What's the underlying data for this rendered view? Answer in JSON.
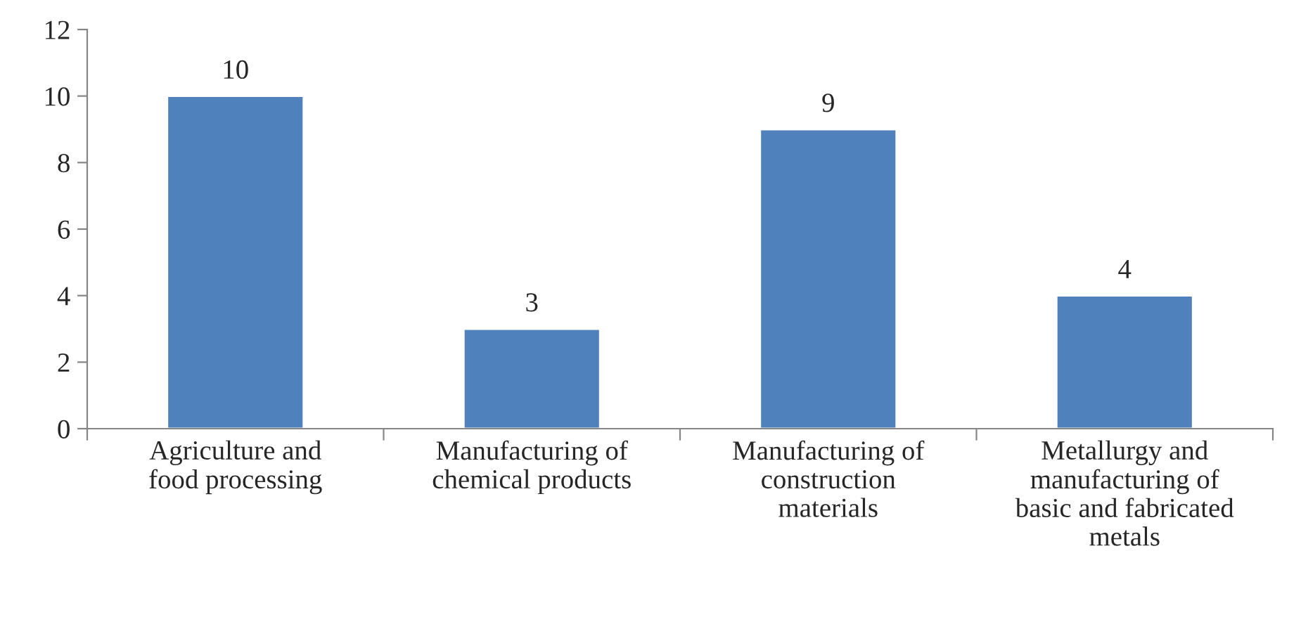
{
  "chart_data": {
    "type": "bar",
    "categories": [
      "Agriculture and\nfood processing",
      "Manufacturing of\nchemical products",
      "Manufacturing of\nconstruction\nmaterials",
      "Metallurgy and\nmanufacturing of\nbasic and fabricated\nmetals"
    ],
    "values": [
      10,
      3,
      9,
      4
    ],
    "color": "#4f81bd",
    "ylim": [
      0,
      12
    ],
    "yticks": [
      0,
      2,
      4,
      6,
      8,
      10,
      12
    ],
    "grid": false,
    "data_labels": true
  }
}
